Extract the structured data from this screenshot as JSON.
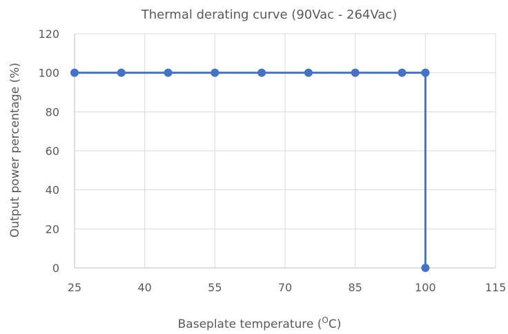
{
  "chart_data": {
    "type": "line",
    "title": "Thermal derating curve (90Vac - 264Vac)",
    "xlabel_main": "Baseplate temperature (",
    "xlabel_sup": "O",
    "xlabel_end": "C)",
    "ylabel": "Output power percentage (%)",
    "xlim": [
      25,
      115
    ],
    "ylim": [
      0,
      120
    ],
    "x_ticks": [
      25,
      40,
      55,
      70,
      85,
      100,
      115
    ],
    "y_ticks": [
      0,
      20,
      40,
      60,
      80,
      100,
      120
    ],
    "grid": true,
    "series": [
      {
        "color": "#4472c4",
        "points": [
          [
            25,
            100
          ],
          [
            35,
            100
          ],
          [
            45,
            100
          ],
          [
            55,
            100
          ],
          [
            65,
            100
          ],
          [
            75,
            100
          ],
          [
            85,
            100
          ],
          [
            95,
            100
          ],
          [
            100,
            100
          ],
          [
            100,
            0
          ]
        ]
      }
    ]
  }
}
